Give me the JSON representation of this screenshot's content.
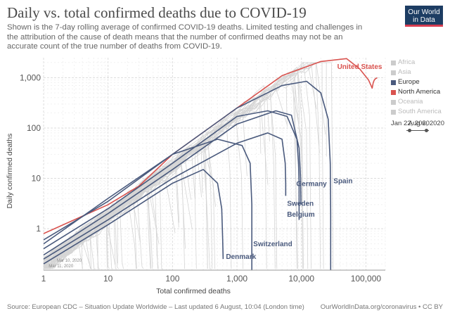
{
  "title": "Daily vs. total confirmed deaths due to COVID-19",
  "subtitle": "Shown is the 7-day rolling average of confirmed COVID-19 deaths. Limited testing and challenges in the attribution of the cause of death means that the number of confirmed deaths may not be an accurate count of the true number of deaths from COVID-19.",
  "logo": {
    "line1": "Our World",
    "line2": "in Data"
  },
  "legend": [
    {
      "label": "Africa",
      "color": "#cccccc",
      "text_color": "#bbbbbb"
    },
    {
      "label": "Asia",
      "color": "#cccccc",
      "text_color": "#bbbbbb"
    },
    {
      "label": "Europe",
      "color": "#4a5a7d",
      "text_color": "#333333"
    },
    {
      "label": "North America",
      "color": "#d9534f",
      "text_color": "#333333"
    },
    {
      "label": "Oceania",
      "color": "#cccccc",
      "text_color": "#bbbbbb"
    },
    {
      "label": "South America",
      "color": "#cccccc",
      "text_color": "#bbbbbb"
    }
  ],
  "timeline": {
    "start": "Jan 22, 2020",
    "end": "Aug 6, 2020"
  },
  "source": "Source: European CDC – Situation Update Worldwide – Last updated 6 August, 10:04 (London time)",
  "url": "OurWorldInData.org/coronavirus • CC BY",
  "chart_data": {
    "type": "line",
    "xlabel": "Total confirmed deaths",
    "ylabel": "Daily confirmed deaths",
    "xscale": "log",
    "yscale": "log",
    "xlim": [
      1,
      200000
    ],
    "ylim": [
      0.15,
      2500
    ],
    "xticks": [
      {
        "value": 1,
        "label": "1"
      },
      {
        "value": 10,
        "label": "10"
      },
      {
        "value": 100,
        "label": "100"
      },
      {
        "value": 1000,
        "label": "1,000"
      },
      {
        "value": 10000,
        "label": "10,000"
      },
      {
        "value": 100000,
        "label": "100,000"
      }
    ],
    "yticks": [
      {
        "value": 1,
        "label": "1"
      },
      {
        "value": 10,
        "label": "10"
      },
      {
        "value": 100,
        "label": "100"
      },
      {
        "value": 1000,
        "label": "1,000"
      }
    ],
    "grid": true,
    "legend_position": "right",
    "annotations": [
      "Mar 10, 2020",
      "Mar 11, 2020"
    ],
    "series": [
      {
        "name": "United States",
        "color": "#d9534f",
        "label_pos": "above",
        "x": [
          1,
          10,
          30,
          100,
          1000,
          5000,
          20000,
          50000,
          80000,
          110000,
          120000,
          125000,
          130000,
          135000,
          140000,
          150000
        ],
        "y": [
          0.8,
          3,
          7,
          30,
          250,
          1100,
          2100,
          2400,
          1500,
          900,
          700,
          620,
          800,
          900,
          950,
          1000
        ]
      },
      {
        "name": "Spain",
        "color": "#4a5a7d",
        "label_pos": "right",
        "x": [
          1,
          10,
          100,
          1000,
          5000,
          12000,
          20000,
          26000,
          28000,
          28400,
          28400
        ],
        "y": [
          0.6,
          3.5,
          30,
          250,
          700,
          850,
          500,
          150,
          20,
          2,
          0.15
        ]
      },
      {
        "name": "Germany",
        "color": "#4a5a7d",
        "label_pos": "above",
        "x": [
          1,
          10,
          100,
          1000,
          3000,
          6000,
          8500,
          9000,
          9200,
          9200
        ],
        "y": [
          0.4,
          2.5,
          20,
          170,
          220,
          170,
          60,
          20,
          8,
          1.5
        ]
      },
      {
        "name": "Belgium",
        "color": "#4a5a7d",
        "label_pos": "below",
        "x": [
          1,
          10,
          100,
          1000,
          4000,
          7000,
          9200,
          9700,
          9800,
          9800
        ],
        "y": [
          0.3,
          2,
          15,
          120,
          220,
          180,
          40,
          10,
          4,
          3
        ]
      },
      {
        "name": "Sweden",
        "color": "#4a5a7d",
        "label_pos": "below",
        "x": [
          1,
          10,
          100,
          1000,
          3000,
          5000,
          5600,
          5700,
          5700
        ],
        "y": [
          0.25,
          1.5,
          10,
          50,
          80,
          60,
          20,
          8,
          4.5
        ]
      },
      {
        "name": "Switzerland",
        "color": "#4a5a7d",
        "label_pos": "right",
        "x": [
          1,
          10,
          100,
          500,
          1200,
          1600,
          1700,
          1700
        ],
        "y": [
          0.5,
          4,
          30,
          60,
          45,
          20,
          3,
          0.15
        ]
      },
      {
        "name": "Denmark",
        "color": "#4a5a7d",
        "label_pos": "below",
        "x": [
          1,
          10,
          100,
          300,
          500,
          580,
          600,
          610
        ],
        "y": [
          0.2,
          1.2,
          8,
          15,
          8,
          2.5,
          0.6,
          0.25
        ]
      }
    ]
  }
}
